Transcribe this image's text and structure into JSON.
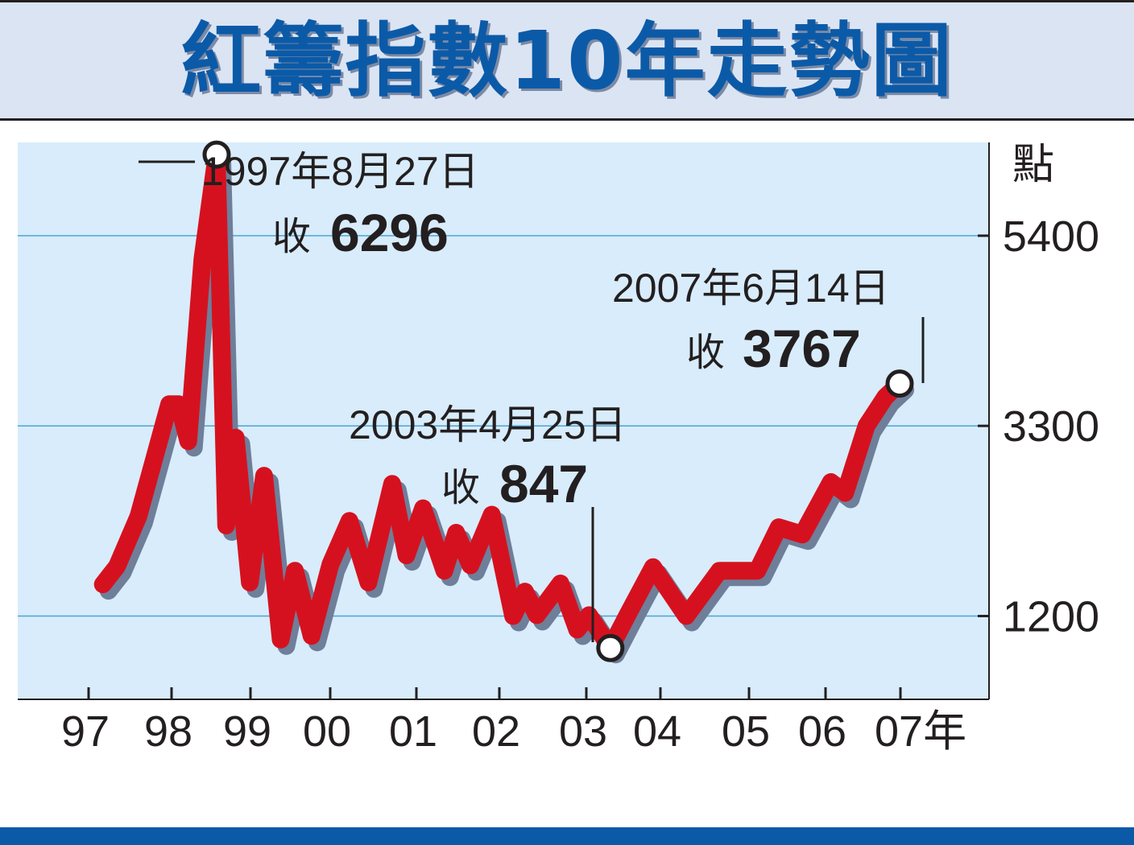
{
  "chart_data": {
    "type": "line",
    "title": "紅籌指數10年走勢圖",
    "unit_label": "點",
    "xlabel": "",
    "ylabel": "",
    "ylim": [
      280,
      6430
    ],
    "y_ticks": [
      1200,
      3300,
      5400
    ],
    "x_ticks": [
      "97",
      "98",
      "99",
      "00",
      "01",
      "02",
      "03",
      "04",
      "05",
      "06",
      "07年"
    ],
    "grid": true,
    "colors": {
      "line": "#d6111f",
      "shadow": "#6f7e99",
      "plot_bg": "#d8ecfb",
      "grid": "#4aa5d6",
      "title": "#0b5aa8"
    },
    "series": [
      {
        "values": [
          [
            0.6,
            1550
          ],
          [
            1.2,
            1750
          ],
          [
            2.1,
            2300
          ],
          [
            3.4,
            3540
          ],
          [
            3.8,
            3540
          ],
          [
            4.2,
            3130
          ],
          [
            4.8,
            5140
          ],
          [
            5.4,
            6296
          ],
          [
            5.8,
            2200
          ],
          [
            6.2,
            3170
          ],
          [
            6.8,
            1570
          ],
          [
            7.4,
            2750
          ],
          [
            8.1,
            940
          ],
          [
            8.7,
            1700
          ],
          [
            9.4,
            980
          ],
          [
            10.2,
            1770
          ],
          [
            11.0,
            2250
          ],
          [
            11.8,
            1570
          ],
          [
            12.8,
            2660
          ],
          [
            13.4,
            1870
          ],
          [
            14.1,
            2390
          ],
          [
            15.0,
            1700
          ],
          [
            15.5,
            2120
          ],
          [
            16.1,
            1760
          ],
          [
            17.0,
            2320
          ],
          [
            17.9,
            1200
          ],
          [
            18.4,
            1470
          ],
          [
            18.9,
            1210
          ],
          [
            19.9,
            1560
          ],
          [
            20.6,
            1050
          ],
          [
            21.1,
            1210
          ],
          [
            22.0,
            847
          ],
          [
            22.7,
            1200
          ],
          [
            23.8,
            1740
          ],
          [
            25.2,
            1200
          ],
          [
            26.6,
            1700
          ],
          [
            28.2,
            1700
          ],
          [
            29.1,
            2180
          ],
          [
            30.1,
            2100
          ],
          [
            31.3,
            2680
          ],
          [
            31.9,
            2560
          ],
          [
            32.8,
            3300
          ],
          [
            33.6,
            3620
          ],
          [
            34.2,
            3767
          ]
        ]
      }
    ],
    "annotations": [
      {
        "date": "1997年8月27日",
        "prefix": "收",
        "value": "6296"
      },
      {
        "date": "2003年4月25日",
        "prefix": "收",
        "value": "847"
      },
      {
        "date": "2007年6月14日",
        "prefix": "收",
        "value": "3767"
      }
    ]
  }
}
